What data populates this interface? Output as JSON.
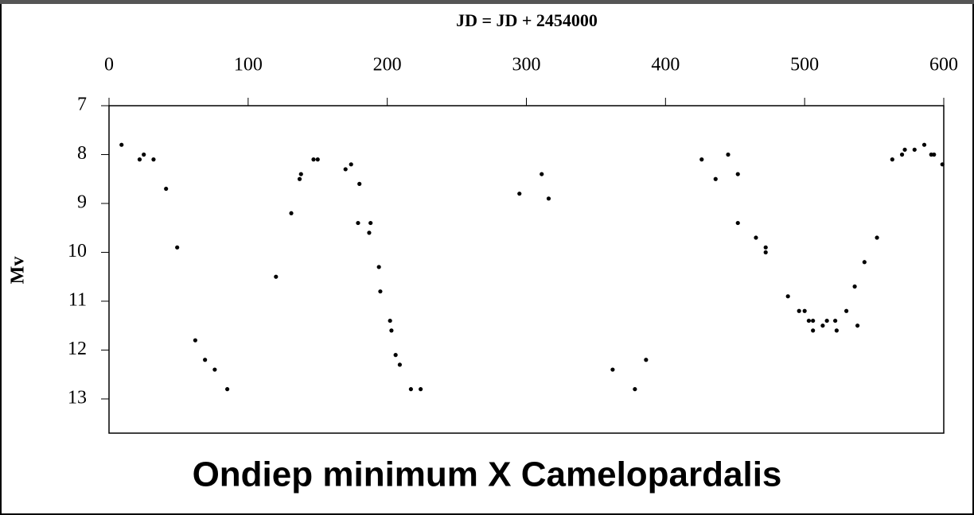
{
  "chart_data": {
    "type": "scatter",
    "title": "Ondiep minimum X Camelopardalis",
    "x_label": "JD = JD + 2454000",
    "y_label": "Mv",
    "x_axis_position": "top",
    "y_inverted": true,
    "color": "#000000",
    "x": [
      9,
      22,
      25,
      32,
      41,
      49,
      62,
      69,
      76,
      85,
      120,
      131,
      137,
      138,
      147,
      150,
      170,
      174,
      180,
      179,
      187,
      188,
      194,
      195,
      202,
      203,
      206,
      209,
      217,
      224,
      295,
      311,
      316,
      362,
      378,
      386,
      426,
      436,
      445,
      452,
      452,
      465,
      472,
      472,
      488,
      496,
      500,
      503,
      506,
      506,
      513,
      516,
      522,
      523,
      530,
      536,
      538,
      543,
      552,
      563,
      570,
      572,
      579,
      586,
      591,
      593,
      599
    ],
    "y": [
      7.8,
      8.1,
      8.0,
      8.1,
      8.7,
      9.9,
      11.8,
      12.2,
      12.4,
      12.8,
      10.5,
      9.2,
      8.5,
      8.4,
      8.1,
      8.1,
      8.3,
      8.2,
      8.6,
      9.4,
      9.6,
      9.4,
      10.3,
      10.8,
      11.4,
      11.6,
      12.1,
      12.3,
      12.8,
      12.8,
      8.8,
      8.4,
      8.9,
      12.4,
      12.8,
      12.2,
      8.1,
      8.5,
      8.0,
      8.4,
      9.4,
      9.7,
      9.9,
      10.0,
      10.9,
      11.2,
      11.2,
      11.4,
      11.4,
      11.6,
      11.5,
      11.4,
      11.4,
      11.6,
      11.2,
      10.7,
      11.5,
      10.2,
      9.7,
      8.1,
      8.0,
      7.9,
      7.9,
      7.8,
      8.0,
      8.0,
      8.2
    ],
    "xlim": [
      0,
      600
    ],
    "xticks": [
      0,
      100,
      200,
      300,
      400,
      500,
      600
    ],
    "ylim": [
      7,
      13.7
    ],
    "yticks": [
      7,
      8,
      9,
      10,
      11,
      12,
      13
    ]
  }
}
